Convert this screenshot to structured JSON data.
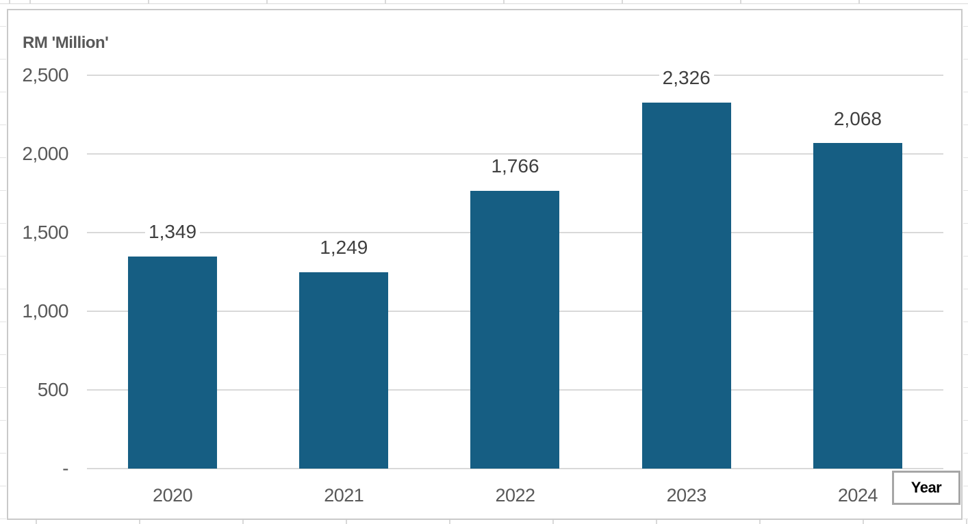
{
  "chart_data": {
    "type": "bar",
    "title": "RM 'Million'",
    "xlabel": "Year",
    "ylabel": "RM 'Million'",
    "categories": [
      "2020",
      "2021",
      "2022",
      "2023",
      "2024"
    ],
    "values": [
      1349,
      1249,
      1766,
      2326,
      2068
    ],
    "value_labels": [
      "1,349",
      "1,249",
      "1,766",
      "2,326",
      "2,068"
    ],
    "ylim": [
      0,
      2500
    ],
    "y_ticks": [
      {
        "value": 2500,
        "label": "2,500"
      },
      {
        "value": 2000,
        "label": "2,000"
      },
      {
        "value": 1500,
        "label": "1,500"
      },
      {
        "value": 1000,
        "label": "1,000"
      },
      {
        "value": 500,
        "label": "500"
      },
      {
        "value": 0,
        "label": "-"
      }
    ],
    "grid": true,
    "legend": false,
    "colors": {
      "bar": "#165e83",
      "gridline": "#d9d9d9",
      "tick_label": "#595959",
      "data_label": "#404040",
      "axis_title": "#595959",
      "chart_border": "#c9c9c9",
      "year_box_border": "#a6a6a6",
      "year_box_text": "#000000",
      "background": "#ffffff"
    }
  }
}
